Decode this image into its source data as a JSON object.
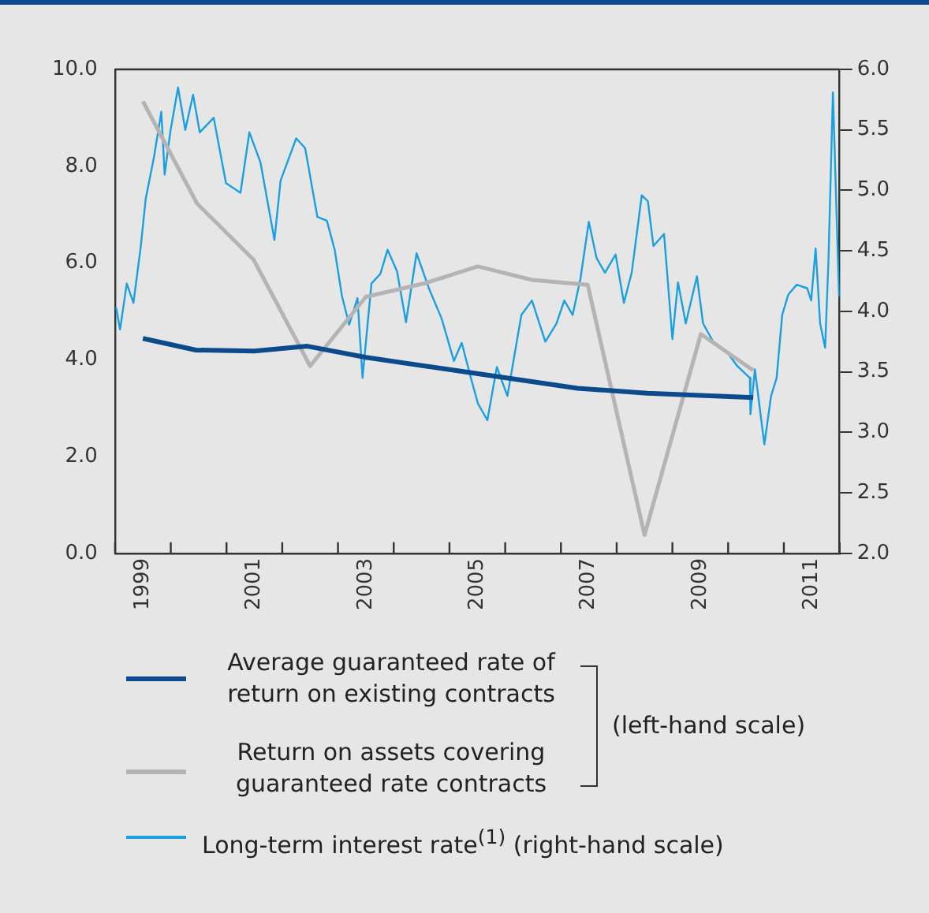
{
  "chart_data": {
    "type": "line",
    "annotations": [
      "(left-hand scale)"
    ],
    "xlim": [
      1999,
      2012
    ],
    "xticks": [
      {
        "value": 1999,
        "label": null
      },
      {
        "value": 1999.5,
        "label": "1999"
      },
      {
        "value": 2000,
        "label": null
      },
      {
        "value": 2001,
        "label": null
      },
      {
        "value": 2001.5,
        "label": "2001"
      },
      {
        "value": 2002,
        "label": null
      },
      {
        "value": 2003,
        "label": null
      },
      {
        "value": 2003.5,
        "label": "2003"
      },
      {
        "value": 2004,
        "label": null
      },
      {
        "value": 2005,
        "label": null
      },
      {
        "value": 2005.5,
        "label": "2005"
      },
      {
        "value": 2006,
        "label": null
      },
      {
        "value": 2007,
        "label": null
      },
      {
        "value": 2007.5,
        "label": "2007"
      },
      {
        "value": 2008,
        "label": null
      },
      {
        "value": 2009,
        "label": null
      },
      {
        "value": 2009.5,
        "label": "2009"
      },
      {
        "value": 2010,
        "label": null
      },
      {
        "value": 2011,
        "label": null
      },
      {
        "value": 2011.5,
        "label": "2011"
      },
      {
        "value": 2012,
        "label": null
      }
    ],
    "ylim": [
      0,
      10
    ],
    "yticks": [
      {
        "value": 0,
        "label": "0.0"
      },
      {
        "value": 2,
        "label": "2.0"
      },
      {
        "value": 4,
        "label": "4.0"
      },
      {
        "value": 6,
        "label": "6.0"
      },
      {
        "value": 8,
        "label": "8.0"
      },
      {
        "value": 10,
        "label": "10.0"
      }
    ],
    "y2lim": [
      2,
      6
    ],
    "y2ticks": [
      {
        "value": 2,
        "label": "2.0"
      },
      {
        "value": 2.5,
        "label": "2.5"
      },
      {
        "value": 3,
        "label": "3.0"
      },
      {
        "value": 3.5,
        "label": "3.5"
      },
      {
        "value": 4,
        "label": "4.0"
      },
      {
        "value": 4.5,
        "label": "4.5"
      },
      {
        "value": 5,
        "label": "5.0"
      },
      {
        "value": 5.5,
        "label": "5.5"
      },
      {
        "value": 6,
        "label": "6.0"
      }
    ],
    "grid": false,
    "legend": "bottom",
    "marker": "none",
    "line_style": "solid",
    "series": [
      {
        "name": "Average guaranteed rate of return on existing contracts",
        "color": "#0b4a8b",
        "x": [
          1999.5,
          2000.45,
          2001.5,
          2002.45,
          2003.5,
          2005.1,
          2007.3,
          2008.55,
          2010.45
        ],
        "values": [
          4.44,
          4.2,
          4.18,
          4.28,
          4.05,
          3.78,
          3.41,
          3.31,
          3.22
        ]
      },
      {
        "name": "Return on assets covering guaranteed rate contracts",
        "color": "#b4b4b4",
        "x": [
          1999.5,
          2000.47,
          2001.49,
          2002.5,
          2003.5,
          2004.59,
          2005.51,
          2006.48,
          2007.48,
          2008.5,
          2009.51,
          2010.45
        ],
        "values": [
          9.34,
          7.23,
          6.06,
          3.87,
          5.3,
          5.59,
          5.93,
          5.65,
          5.55,
          0.38,
          4.53,
          3.78
        ]
      },
      {
        "name": "Long-term interest rate$^{(1)}$ (right-hand scale)",
        "color": "#1aa0e0",
        "axis": "y2",
        "x": [
          1999.02,
          1999.09,
          1999.21,
          1999.33,
          1999.46,
          1999.55,
          1999.7,
          1999.83,
          1999.89,
          1999.99,
          2000.13,
          2000.26,
          2000.4,
          2000.52,
          2000.77,
          2000.99,
          2001.25,
          2001.41,
          2001.61,
          2001.86,
          2001.97,
          2002.25,
          2002.41,
          2002.63,
          2002.8,
          2002.94,
          2003.07,
          2003.2,
          2003.35,
          2003.44,
          2003.6,
          2003.76,
          2003.89,
          2004.06,
          2004.22,
          2004.41,
          2004.64,
          2004.86,
          2005.08,
          2005.22,
          2005.39,
          2005.51,
          2005.68,
          2005.85,
          2006.04,
          2006.29,
          2006.48,
          2006.72,
          2006.92,
          2007.06,
          2007.21,
          2007.35,
          2007.5,
          2007.64,
          2007.79,
          2007.98,
          2008.13,
          2008.27,
          2008.45,
          2008.56,
          2008.66,
          2008.85,
          2009.0,
          2009.1,
          2009.24,
          2009.44,
          2009.55,
          2009.73,
          2009.97,
          2010.16,
          2010.39,
          2010.4,
          2010.48,
          2010.65,
          2010.77,
          2010.87,
          2010.97,
          2011.08,
          2011.23,
          2011.42,
          2011.49,
          2011.57,
          2011.65,
          2011.74,
          2011.8,
          2011.88,
          2011.99
        ],
        "values": [
          4.03,
          3.85,
          4.23,
          4.07,
          4.53,
          4.93,
          5.28,
          5.65,
          5.13,
          5.48,
          5.85,
          5.5,
          5.79,
          5.48,
          5.6,
          5.06,
          4.98,
          5.48,
          5.23,
          4.59,
          5.08,
          5.43,
          5.35,
          4.78,
          4.75,
          4.51,
          4.13,
          3.89,
          4.11,
          3.45,
          4.23,
          4.31,
          4.51,
          4.33,
          3.91,
          4.48,
          4.18,
          3.94,
          3.59,
          3.74,
          3.44,
          3.24,
          3.1,
          3.54,
          3.3,
          3.97,
          4.09,
          3.75,
          3.9,
          4.09,
          3.97,
          4.27,
          4.74,
          4.44,
          4.32,
          4.47,
          4.07,
          4.32,
          4.96,
          4.91,
          4.54,
          4.64,
          3.77,
          4.24,
          3.9,
          4.29,
          3.9,
          3.75,
          3.67,
          3.55,
          3.45,
          3.15,
          3.52,
          2.9,
          3.3,
          3.45,
          3.97,
          4.14,
          4.22,
          4.19,
          4.09,
          4.52,
          3.9,
          3.7,
          4.42,
          5.81,
          4.12
        ]
      }
    ]
  }
}
